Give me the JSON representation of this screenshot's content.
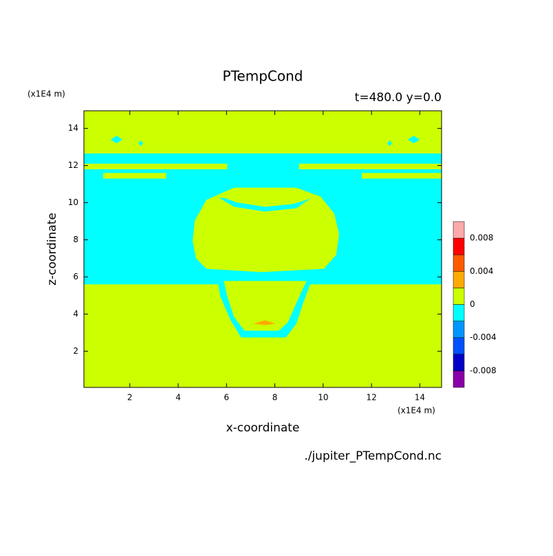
{
  "chart_data": {
    "type": "contour",
    "title": "PTempCond",
    "subtitle": "t=480.0 y=0.0",
    "x_label": "x-coordinate",
    "y_label": "z-coordinate",
    "x_unit": "(x1E4 m)",
    "y_unit": "(x1E4 m)",
    "source": "./jupiter_PTempCond.nc",
    "xlim": [
      0.1,
      14.9
    ],
    "ylim": [
      0.05,
      14.95
    ],
    "xticks": [
      2,
      4,
      6,
      8,
      10,
      12,
      14
    ],
    "yticks": [
      2,
      4,
      6,
      8,
      10,
      12,
      14
    ],
    "levels": [
      -0.01,
      -0.008,
      -0.006,
      -0.004,
      -0.002,
      0,
      0.002,
      0.004,
      0.006,
      0.008,
      0.01
    ],
    "colors": [
      "#8a00a8",
      "#0000c8",
      "#0050ff",
      "#0096ff",
      "#00ffff",
      "#ccff00",
      "#ffaa00",
      "#ff5a00",
      "#ff0000",
      "#ffaaaa"
    ],
    "colorbar_ticks": [
      -0.008,
      -0.004,
      0,
      0.004,
      0.008
    ],
    "regions": [
      {
        "level": 0,
        "x": [
          0.1,
          14.9,
          14.9,
          0.1
        ],
        "z": [
          0.05,
          0.05,
          14.95,
          14.95
        ]
      },
      {
        "level": -0.002,
        "x": [
          0.1,
          14.9,
          14.9,
          0.1
        ],
        "z": [
          5.6,
          5.6,
          12.65,
          12.65
        ]
      },
      {
        "level": 0,
        "x": [
          0.1,
          6.03,
          6.03,
          0.1
        ],
        "z": [
          11.8,
          11.8,
          12.1,
          12.1
        ]
      },
      {
        "level": 0,
        "x": [
          9.0,
          14.9,
          14.9,
          9.0
        ],
        "z": [
          11.8,
          11.8,
          12.1,
          12.1
        ]
      },
      {
        "level": 0,
        "x": [
          0.9,
          3.5,
          3.5,
          0.9
        ],
        "z": [
          11.3,
          11.3,
          11.6,
          11.6
        ]
      },
      {
        "level": 0,
        "x": [
          11.6,
          14.9,
          14.9,
          11.6
        ],
        "z": [
          11.3,
          11.3,
          11.6,
          11.6
        ]
      },
      {
        "level": -0.002,
        "x": [
          1.2,
          1.45,
          1.7,
          1.45
        ],
        "z": [
          13.4,
          13.2,
          13.4,
          13.6
        ]
      },
      {
        "level": -0.002,
        "x": [
          2.35,
          2.45,
          2.55,
          2.45
        ],
        "z": [
          13.2,
          13.05,
          13.2,
          13.35
        ]
      },
      {
        "level": -0.002,
        "x": [
          13.5,
          13.75,
          14.0,
          13.75
        ],
        "z": [
          13.4,
          13.2,
          13.4,
          13.6
        ]
      },
      {
        "level": -0.002,
        "x": [
          12.65,
          12.75,
          12.85,
          12.75
        ],
        "z": [
          13.2,
          13.05,
          13.2,
          13.35
        ]
      },
      {
        "level": -0.002,
        "x": [
          5.6,
          9.6,
          9.17,
          8.89,
          8.46,
          6.6,
          6.17,
          5.74
        ],
        "z": [
          6.07,
          6.07,
          4.59,
          3.48,
          2.74,
          2.74,
          3.67,
          4.96
        ]
      },
      {
        "level": 0,
        "x": [
          5.89,
          9.31,
          8.89,
          8.54,
          8.17,
          6.74,
          6.31,
          6.03
        ],
        "z": [
          5.78,
          5.78,
          4.59,
          3.56,
          3.11,
          3.11,
          3.85,
          4.96
        ]
      },
      {
        "level": 0,
        "x": [
          6.31,
          8.89,
          9.89,
          10.46,
          10.66,
          10.54,
          10.03,
          7.46,
          5.17,
          4.74,
          4.6,
          4.69,
          5.17
        ],
        "z": [
          10.81,
          10.81,
          10.33,
          9.41,
          8.3,
          7.19,
          6.44,
          6.26,
          6.44,
          7.0,
          7.93,
          9.04,
          10.15
        ]
      },
      {
        "level": -0.002,
        "x": [
          5.69,
          6.31,
          7.6,
          8.89,
          9.51,
          9.31,
          8.74,
          7.6,
          6.46,
          5.89
        ],
        "z": [
          10.26,
          9.78,
          9.52,
          9.7,
          10.26,
          10.15,
          9.93,
          9.78,
          10.0,
          10.26
        ]
      },
      {
        "level": 0.002,
        "x": [
          7.11,
          7.6,
          8.03,
          7.6
        ],
        "z": [
          3.48,
          3.67,
          3.48,
          3.41
        ]
      }
    ]
  }
}
